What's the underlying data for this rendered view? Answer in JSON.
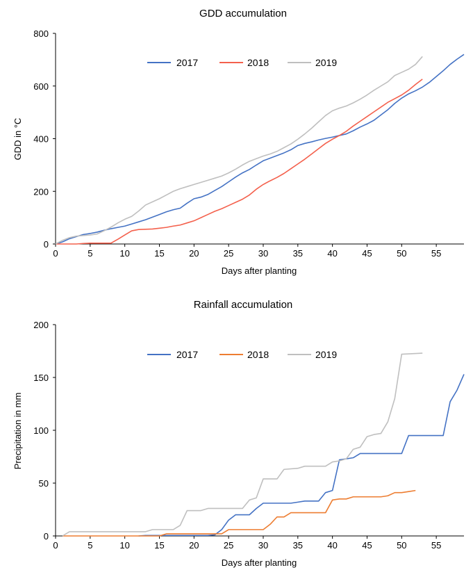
{
  "chart_data": [
    {
      "type": "line",
      "title": "GDD accumulation",
      "xlabel": "Days after planting",
      "ylabel": "GDD in °C",
      "xlim": [
        0,
        59
      ],
      "ylim": [
        0,
        800
      ],
      "xticks": [
        0,
        5,
        10,
        15,
        20,
        25,
        30,
        35,
        40,
        45,
        50,
        55
      ],
      "yticks": [
        0,
        200,
        400,
        600,
        800
      ],
      "legend_position": "top-center",
      "grid": false,
      "series": [
        {
          "name": "2017",
          "color": "#4472C4",
          "points": [
            [
              0,
              0
            ],
            [
              1,
              8
            ],
            [
              2,
              20
            ],
            [
              3,
              28
            ],
            [
              4,
              36
            ],
            [
              5,
              40
            ],
            [
              6,
              45
            ],
            [
              7,
              52
            ],
            [
              8,
              58
            ],
            [
              9,
              63
            ],
            [
              10,
              68
            ],
            [
              11,
              76
            ],
            [
              12,
              84
            ],
            [
              13,
              92
            ],
            [
              14,
              102
            ],
            [
              15,
              112
            ],
            [
              16,
              122
            ],
            [
              17,
              130
            ],
            [
              18,
              136
            ],
            [
              19,
              155
            ],
            [
              20,
              172
            ],
            [
              21,
              178
            ],
            [
              22,
              188
            ],
            [
              23,
              203
            ],
            [
              24,
              218
            ],
            [
              25,
              236
            ],
            [
              26,
              254
            ],
            [
              27,
              270
            ],
            [
              28,
              283
            ],
            [
              29,
              300
            ],
            [
              30,
              316
            ],
            [
              31,
              326
            ],
            [
              32,
              336
            ],
            [
              33,
              346
            ],
            [
              34,
              358
            ],
            [
              35,
              374
            ],
            [
              36,
              382
            ],
            [
              37,
              388
            ],
            [
              38,
              395
            ],
            [
              39,
              401
            ],
            [
              40,
              406
            ],
            [
              41,
              412
            ],
            [
              42,
              418
            ],
            [
              43,
              430
            ],
            [
              44,
              444
            ],
            [
              45,
              456
            ],
            [
              46,
              470
            ],
            [
              47,
              490
            ],
            [
              48,
              510
            ],
            [
              49,
              534
            ],
            [
              50,
              554
            ],
            [
              51,
              570
            ],
            [
              52,
              582
            ],
            [
              53,
              596
            ],
            [
              54,
              614
            ],
            [
              55,
              636
            ],
            [
              56,
              658
            ],
            [
              57,
              682
            ],
            [
              58,
              702
            ],
            [
              59,
              720
            ]
          ]
        },
        {
          "name": "2018",
          "color": "#F4604C",
          "points": [
            [
              0,
              0
            ],
            [
              1,
              0
            ],
            [
              2,
              0
            ],
            [
              3,
              0
            ],
            [
              4,
              2
            ],
            [
              5,
              3
            ],
            [
              6,
              3
            ],
            [
              7,
              3
            ],
            [
              8,
              3
            ],
            [
              9,
              18
            ],
            [
              10,
              34
            ],
            [
              11,
              50
            ],
            [
              12,
              55
            ],
            [
              13,
              56
            ],
            [
              14,
              57
            ],
            [
              15,
              60
            ],
            [
              16,
              63
            ],
            [
              17,
              68
            ],
            [
              18,
              72
            ],
            [
              19,
              80
            ],
            [
              20,
              88
            ],
            [
              21,
              100
            ],
            [
              22,
              112
            ],
            [
              23,
              124
            ],
            [
              24,
              134
            ],
            [
              25,
              146
            ],
            [
              26,
              158
            ],
            [
              27,
              170
            ],
            [
              28,
              186
            ],
            [
              29,
              208
            ],
            [
              30,
              226
            ],
            [
              31,
              240
            ],
            [
              32,
              253
            ],
            [
              33,
              268
            ],
            [
              34,
              286
            ],
            [
              35,
              304
            ],
            [
              36,
              322
            ],
            [
              37,
              342
            ],
            [
              38,
              362
            ],
            [
              39,
              382
            ],
            [
              40,
              398
            ],
            [
              41,
              412
            ],
            [
              42,
              428
            ],
            [
              43,
              448
            ],
            [
              44,
              466
            ],
            [
              45,
              484
            ],
            [
              46,
              502
            ],
            [
              47,
              520
            ],
            [
              48,
              538
            ],
            [
              49,
              552
            ],
            [
              50,
              566
            ],
            [
              51,
              584
            ],
            [
              52,
              606
            ],
            [
              53,
              626
            ]
          ]
        },
        {
          "name": "2019",
          "color": "#BFBFBF",
          "points": [
            [
              0,
              0
            ],
            [
              1,
              14
            ],
            [
              2,
              24
            ],
            [
              3,
              30
            ],
            [
              4,
              32
            ],
            [
              5,
              34
            ],
            [
              6,
              38
            ],
            [
              7,
              50
            ],
            [
              8,
              64
            ],
            [
              9,
              80
            ],
            [
              10,
              94
            ],
            [
              11,
              105
            ],
            [
              12,
              125
            ],
            [
              13,
              148
            ],
            [
              14,
              160
            ],
            [
              15,
              172
            ],
            [
              16,
              186
            ],
            [
              17,
              200
            ],
            [
              18,
              210
            ],
            [
              19,
              218
            ],
            [
              20,
              226
            ],
            [
              21,
              234
            ],
            [
              22,
              242
            ],
            [
              23,
              250
            ],
            [
              24,
              258
            ],
            [
              25,
              270
            ],
            [
              26,
              284
            ],
            [
              27,
              300
            ],
            [
              28,
              314
            ],
            [
              29,
              324
            ],
            [
              30,
              334
            ],
            [
              31,
              342
            ],
            [
              32,
              352
            ],
            [
              33,
              366
            ],
            [
              34,
              380
            ],
            [
              35,
              398
            ],
            [
              36,
              418
            ],
            [
              37,
              440
            ],
            [
              38,
              464
            ],
            [
              39,
              488
            ],
            [
              40,
              506
            ],
            [
              41,
              516
            ],
            [
              42,
              524
            ],
            [
              43,
              536
            ],
            [
              44,
              550
            ],
            [
              45,
              566
            ],
            [
              46,
              584
            ],
            [
              47,
              600
            ],
            [
              48,
              616
            ],
            [
              49,
              640
            ],
            [
              50,
              652
            ],
            [
              51,
              664
            ],
            [
              52,
              682
            ],
            [
              53,
              712
            ]
          ]
        }
      ]
    },
    {
      "type": "line",
      "title": "Rainfall accumulation",
      "xlabel": "Days after planting",
      "ylabel": "Precipitation in mm",
      "xlim": [
        0,
        59
      ],
      "ylim": [
        0,
        200
      ],
      "xticks": [
        0,
        5,
        10,
        15,
        20,
        25,
        30,
        35,
        40,
        45,
        50,
        55
      ],
      "yticks": [
        0,
        50,
        100,
        150,
        200
      ],
      "legend_position": "top-center",
      "grid": false,
      "series": [
        {
          "name": "2017",
          "color": "#4472C4",
          "points": [
            [
              12,
              0
            ],
            [
              13,
              0.5
            ],
            [
              21,
              0.5
            ],
            [
              22,
              0.5
            ],
            [
              23,
              1
            ],
            [
              24,
              6
            ],
            [
              25,
              15
            ],
            [
              26,
              20
            ],
            [
              28,
              20
            ],
            [
              29,
              26
            ],
            [
              30,
              31
            ],
            [
              34,
              31
            ],
            [
              35,
              32
            ],
            [
              36,
              33
            ],
            [
              38,
              33
            ],
            [
              39,
              41
            ],
            [
              40,
              43
            ],
            [
              41,
              72
            ],
            [
              42,
              73
            ],
            [
              43,
              74
            ],
            [
              44,
              78
            ],
            [
              50,
              78
            ],
            [
              51,
              95
            ],
            [
              56,
              95
            ],
            [
              57,
              127
            ],
            [
              58,
              138
            ],
            [
              59,
              153
            ]
          ]
        },
        {
          "name": "2018",
          "color": "#ED7D31",
          "points": [
            [
              1,
              0
            ],
            [
              2,
              0
            ],
            [
              15,
              0
            ],
            [
              16,
              2
            ],
            [
              24,
              2
            ],
            [
              25,
              6
            ],
            [
              30,
              6
            ],
            [
              31,
              11
            ],
            [
              32,
              18
            ],
            [
              33,
              18
            ],
            [
              34,
              22
            ],
            [
              39,
              22
            ],
            [
              40,
              34
            ],
            [
              41,
              35
            ],
            [
              42,
              35
            ],
            [
              43,
              37
            ],
            [
              47,
              37
            ],
            [
              48,
              38
            ],
            [
              49,
              41
            ],
            [
              50,
              41
            ],
            [
              51,
              42
            ],
            [
              52,
              43
            ]
          ]
        },
        {
          "name": "2019",
          "color": "#BFBFBF",
          "points": [
            [
              1,
              0
            ],
            [
              2,
              4
            ],
            [
              13,
              4
            ],
            [
              14,
              6
            ],
            [
              17,
              6
            ],
            [
              18,
              10
            ],
            [
              19,
              24
            ],
            [
              21,
              24
            ],
            [
              22,
              26
            ],
            [
              27,
              26
            ],
            [
              28,
              34
            ],
            [
              29,
              36
            ],
            [
              30,
              54
            ],
            [
              32,
              54
            ],
            [
              33,
              63
            ],
            [
              35,
              64
            ],
            [
              36,
              66
            ],
            [
              39,
              66
            ],
            [
              40,
              70
            ],
            [
              41,
              71
            ],
            [
              42,
              73
            ],
            [
              43,
              82
            ],
            [
              44,
              84
            ],
            [
              45,
              94
            ],
            [
              46,
              96
            ],
            [
              47,
              97
            ],
            [
              48,
              108
            ],
            [
              49,
              130
            ],
            [
              50,
              172
            ],
            [
              53,
              173
            ]
          ]
        }
      ]
    }
  ]
}
